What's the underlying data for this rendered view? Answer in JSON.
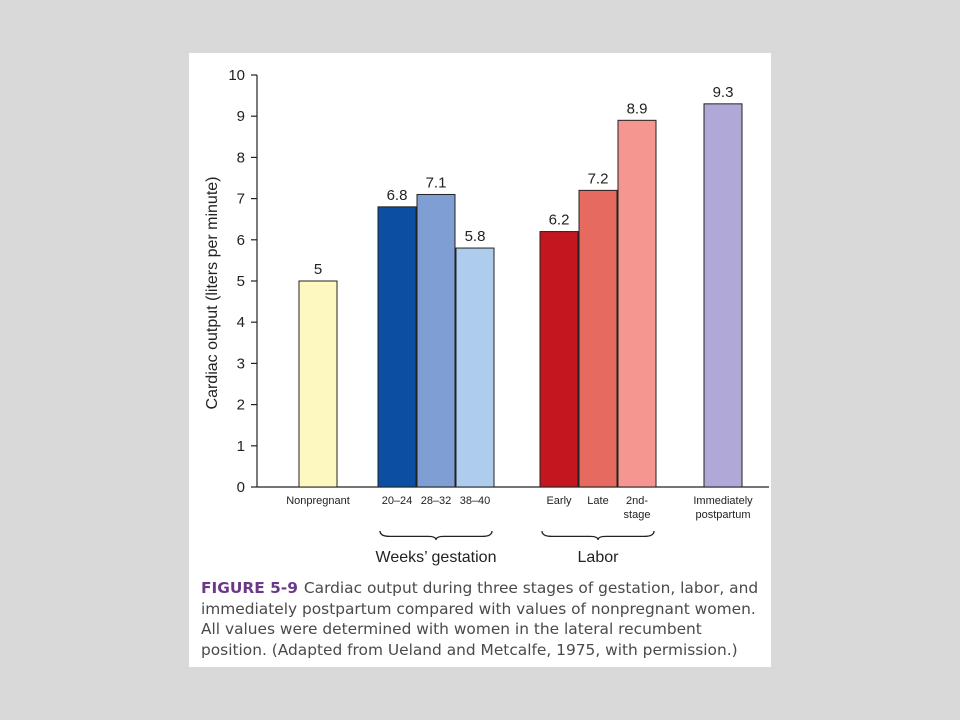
{
  "chart_data": {
    "type": "bar",
    "ylabel": "Cardiac output (liters per minute)",
    "xlabel": "",
    "ylim": [
      0,
      10
    ],
    "yticks": [
      0,
      1,
      2,
      3,
      4,
      5,
      6,
      7,
      8,
      9,
      10
    ],
    "grid": false,
    "bars": [
      {
        "category": "Nonpregnant",
        "value": 5,
        "label": "5",
        "color": "#fdf8c0"
      },
      {
        "category": "20–24",
        "value": 6.8,
        "label": "6.8",
        "color": "#0b4ea2"
      },
      {
        "category": "28–32",
        "value": 7.1,
        "label": "7.1",
        "color": "#7f9fd4"
      },
      {
        "category": "38–40",
        "value": 5.8,
        "label": "5.8",
        "color": "#aecdee"
      },
      {
        "category": "Early",
        "value": 6.2,
        "label": "6.2",
        "color": "#c3161f"
      },
      {
        "category": "Late",
        "value": 7.2,
        "label": "7.2",
        "color": "#e66a60"
      },
      {
        "category": "2nd-\nstage",
        "value": 8.9,
        "label": "8.9",
        "color": "#f59690"
      },
      {
        "category": "Immediately\npostpartum",
        "value": 9.3,
        "label": "9.3",
        "color": "#b0a8d6"
      }
    ],
    "groups": [
      {
        "label": "Weeks’ gestation",
        "bars": [
          1,
          2,
          3
        ]
      },
      {
        "label": "Labor",
        "bars": [
          4,
          5,
          6
        ]
      }
    ]
  },
  "caption": {
    "label": "FIGURE 5-9",
    "text": "Cardiac output during three stages of gestation, labor, and immediately postpartum compared with values of nonpregnant women. All values were determined with women in the lateral recumbent position. (Adapted from Ueland and Metcalfe, 1975, with permission.)"
  }
}
